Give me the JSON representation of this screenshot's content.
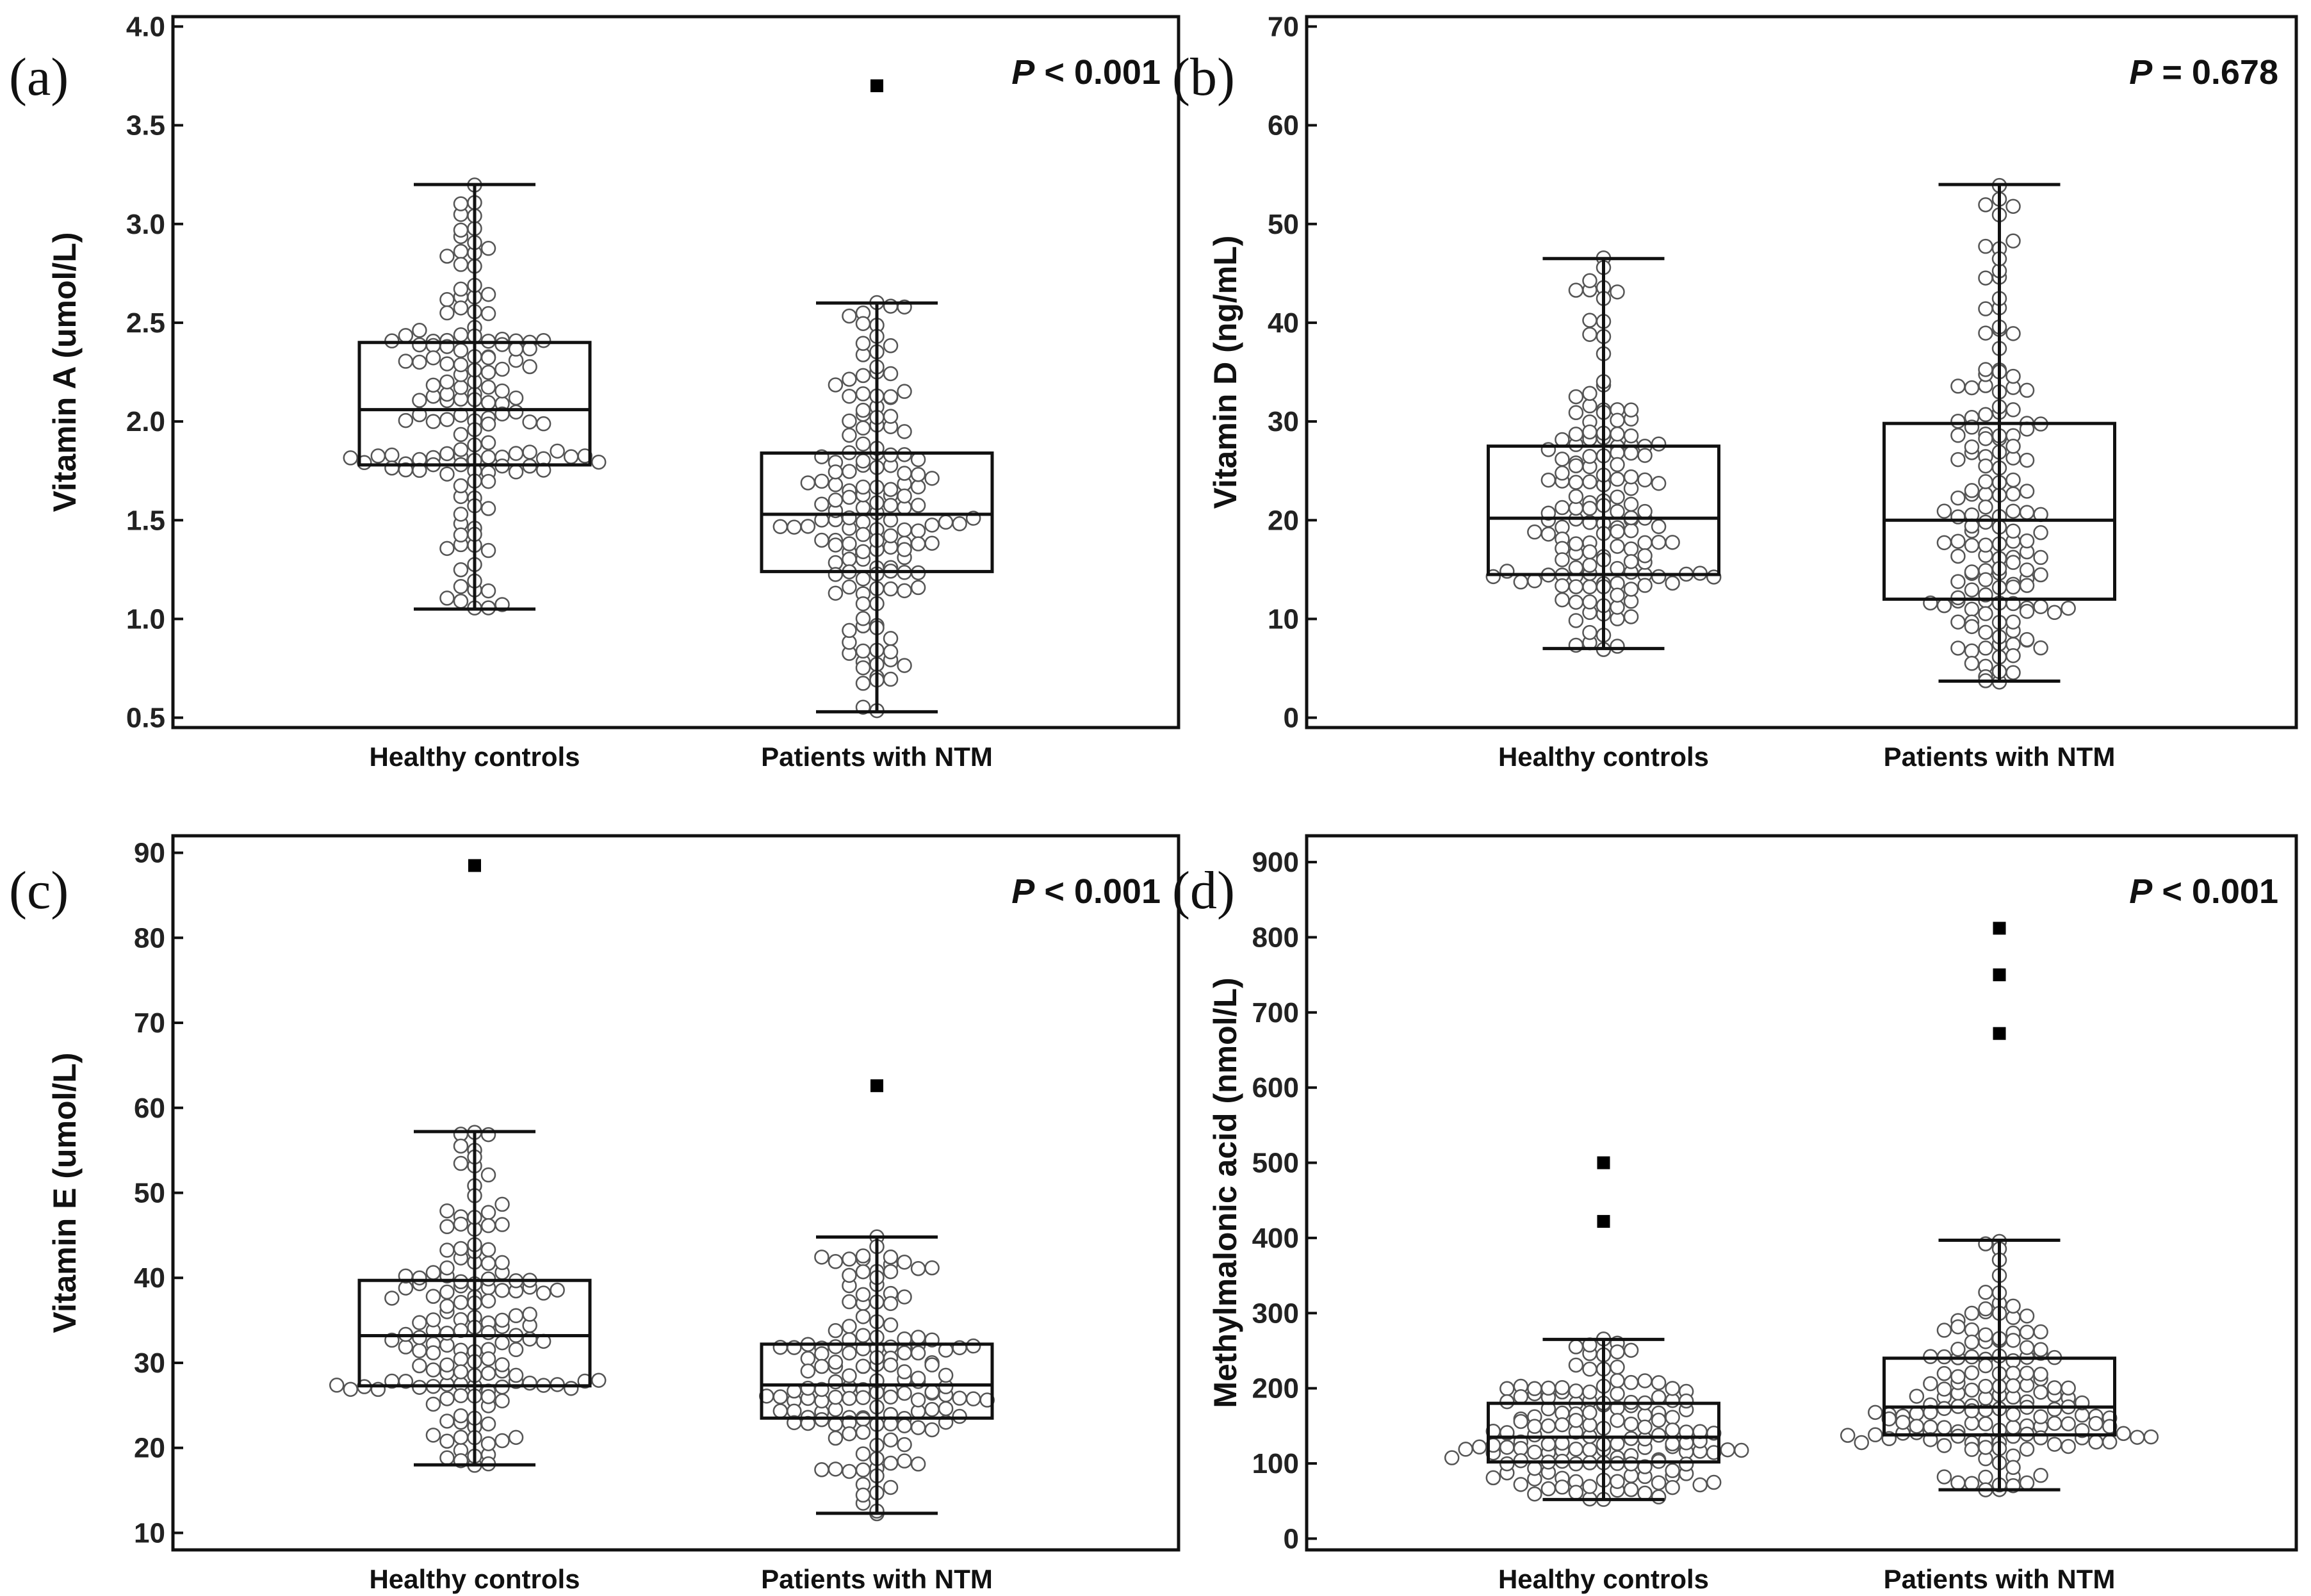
{
  "chart_data": [
    {
      "type": "box",
      "panel": "(a)",
      "title": "",
      "ylabel": "Vitamin A (umol/L)",
      "ylim": [
        0.45,
        4.05
      ],
      "yticks": [
        0.5,
        1.0,
        1.5,
        2.0,
        2.5,
        3.0,
        3.5,
        4.0
      ],
      "ytick_labels": [
        "0.5",
        "1.0",
        "1.5",
        "2.0",
        "2.5",
        "3.0",
        "3.5",
        "4.0"
      ],
      "p_prefix": "P",
      "p_rest": " < 0.001",
      "categories": [
        "Healthy controls",
        "Patients with NTM"
      ],
      "groups": [
        {
          "name": "Healthy controls",
          "whisker_low": 1.05,
          "q1": 1.78,
          "median": 2.06,
          "q3": 2.4,
          "whisker_high": 3.2,
          "n_points": 150,
          "outliers": []
        },
        {
          "name": "Patients with NTM",
          "whisker_low": 0.53,
          "q1": 1.24,
          "median": 1.53,
          "q3": 1.84,
          "whisker_high": 2.6,
          "n_points": 150,
          "outliers": [
            3.7
          ]
        }
      ]
    },
    {
      "type": "box",
      "panel": "(b)",
      "title": "",
      "ylabel": "Vitamin D (ng/mL)",
      "ylim": [
        -1,
        71
      ],
      "yticks": [
        0,
        10,
        20,
        30,
        40,
        50,
        60,
        70
      ],
      "ytick_labels": [
        "0",
        "10",
        "20",
        "30",
        "40",
        "50",
        "60",
        "70"
      ],
      "p_prefix": "P",
      "p_rest": " = 0.678",
      "categories": [
        "Healthy controls",
        "Patients with NTM"
      ],
      "groups": [
        {
          "name": "Healthy controls",
          "whisker_low": 7,
          "q1": 14.5,
          "median": 20.2,
          "q3": 27.5,
          "whisker_high": 46.5,
          "n_points": 150,
          "outliers": []
        },
        {
          "name": "Patients with NTM",
          "whisker_low": 3.7,
          "q1": 12,
          "median": 20,
          "q3": 29.8,
          "whisker_high": 54,
          "n_points": 150,
          "outliers": []
        }
      ]
    },
    {
      "type": "box",
      "panel": "(c)",
      "title": "",
      "ylabel": "Vitamin E (umol/L)",
      "ylim": [
        8,
        92
      ],
      "yticks": [
        10,
        20,
        30,
        40,
        50,
        60,
        70,
        80,
        90
      ],
      "ytick_labels": [
        "10",
        "20",
        "30",
        "40",
        "50",
        "60",
        "70",
        "80",
        "90"
      ],
      "p_prefix": "P",
      "p_rest": " < 0.001",
      "categories": [
        "Healthy controls",
        "Patients with NTM"
      ],
      "groups": [
        {
          "name": "Healthy controls",
          "whisker_low": 18,
          "q1": 27.3,
          "median": 33.2,
          "q3": 39.7,
          "whisker_high": 57.2,
          "n_points": 150,
          "outliers": [
            88.5
          ]
        },
        {
          "name": "Patients with NTM",
          "whisker_low": 12.3,
          "q1": 23.5,
          "median": 27.4,
          "q3": 32.2,
          "whisker_high": 44.8,
          "n_points": 150,
          "outliers": [
            62.6
          ]
        }
      ]
    },
    {
      "type": "box",
      "panel": "(d)",
      "title": "",
      "ylabel": "Methylmalonic acid (nmol/L)",
      "ylim": [
        -15,
        935
      ],
      "yticks": [
        0,
        100,
        200,
        300,
        400,
        500,
        600,
        700,
        800,
        900
      ],
      "ytick_labels": [
        "0",
        "100",
        "200",
        "300",
        "400",
        "500",
        "600",
        "700",
        "800",
        "900"
      ],
      "p_prefix": "P",
      "p_rest": " < 0.001",
      "categories": [
        "Healthy controls",
        "Patients with NTM"
      ],
      "groups": [
        {
          "name": "Healthy controls",
          "whisker_low": 52,
          "q1": 102,
          "median": 135,
          "q3": 180,
          "whisker_high": 265,
          "n_points": 150,
          "outliers": [
            500,
            422
          ]
        },
        {
          "name": "Patients with NTM",
          "whisker_low": 65,
          "q1": 138,
          "median": 175,
          "q3": 240,
          "whisker_high": 397,
          "n_points": 150,
          "outliers": [
            812,
            750,
            672
          ]
        }
      ]
    }
  ]
}
